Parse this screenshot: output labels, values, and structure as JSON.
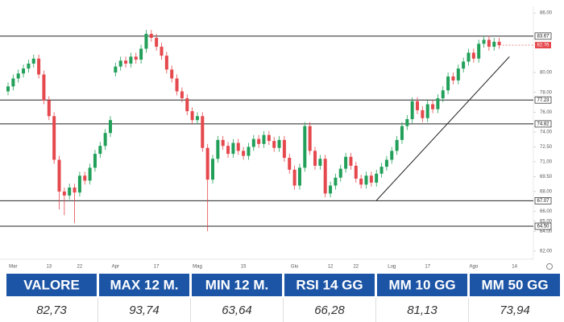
{
  "chart_data": {
    "type": "candlestick",
    "categories": [
      null,
      "Mar",
      null,
      null,
      null,
      null,
      null,
      null,
      "13",
      null,
      null,
      null,
      null,
      null,
      "22",
      null,
      null,
      null,
      null,
      null,
      null,
      "Apr",
      null,
      null,
      null,
      null,
      null,
      null,
      null,
      "17",
      null,
      null,
      null,
      null,
      null,
      null,
      null,
      "Mag",
      null,
      null,
      null,
      null,
      null,
      null,
      null,
      null,
      "15",
      null,
      null,
      null,
      null,
      null,
      null,
      null,
      null,
      null,
      "Giu",
      null,
      null,
      null,
      null,
      null,
      null,
      "12",
      null,
      null,
      null,
      null,
      "22",
      null,
      null,
      null,
      null,
      null,
      null,
      "Lug",
      null,
      null,
      null,
      null,
      null,
      null,
      "17",
      null,
      null,
      null,
      null,
      null,
      null,
      null,
      null,
      "Ago",
      null,
      null,
      null,
      null,
      null,
      null,
      null,
      "14"
    ],
    "open": [
      78.1,
      78.6,
      79.4,
      79.9,
      80.4,
      80.9,
      81.4,
      79.8,
      77.2,
      75.6,
      71.2,
      68.0,
      67.6,
      68.4,
      67.9,
      69.6,
      69.1,
      70.4,
      71.8,
      72.6,
      73.9,
      80.0,
      80.6,
      81.2,
      80.9,
      81.6,
      81.3,
      82.4,
      83.9,
      83.5,
      82.6,
      81.7,
      80.3,
      79.4,
      78.1,
      77.4,
      76.1,
      75.2,
      75.6,
      72.4,
      69.2,
      71.3,
      73.2,
      72.6,
      71.8,
      72.9,
      72.1,
      71.6,
      72.5,
      73.3,
      72.8,
      73.7,
      73.1,
      72.4,
      73.2,
      71.4,
      70.2,
      68.6,
      70.4,
      74.6,
      72.1,
      70.6,
      71.3,
      67.8,
      68.6,
      69.4,
      70.3,
      71.5,
      70.6,
      69.3,
      68.7,
      69.6,
      68.9,
      69.8,
      70.5,
      71.2,
      72.1,
      73.2,
      74.6,
      75.3,
      77.1,
      76.2,
      75.4,
      76.8,
      76.3,
      77.4,
      78.2,
      79.6,
      79.2,
      80.4,
      81.1,
      82.0,
      81.4,
      82.9,
      83.3,
      82.6,
      83.1,
      null,
      null,
      null
    ],
    "high": [
      79.0,
      79.8,
      80.3,
      80.8,
      81.3,
      81.8,
      81.8,
      80.2,
      77.6,
      76.0,
      71.6,
      68.4,
      68.8,
      68.8,
      70.0,
      70.0,
      70.8,
      72.2,
      73.0,
      74.3,
      75.6,
      81.0,
      81.6,
      81.6,
      82.0,
      82.0,
      82.8,
      84.3,
      84.3,
      83.9,
      83.0,
      82.1,
      80.7,
      79.8,
      78.5,
      77.8,
      76.5,
      76.0,
      76.0,
      72.8,
      71.7,
      73.6,
      73.6,
      73.0,
      73.3,
      73.3,
      72.5,
      72.9,
      73.7,
      73.7,
      74.1,
      74.1,
      73.5,
      73.6,
      73.6,
      71.8,
      70.6,
      70.8,
      75.0,
      75.0,
      72.5,
      71.7,
      71.7,
      69.0,
      69.8,
      70.7,
      71.9,
      71.9,
      71.0,
      69.7,
      70.0,
      70.0,
      70.2,
      70.9,
      71.6,
      72.5,
      73.6,
      75.0,
      75.7,
      77.5,
      77.5,
      76.6,
      77.2,
      77.2,
      77.8,
      78.6,
      80.0,
      80.0,
      80.8,
      81.5,
      82.4,
      82.4,
      83.3,
      83.7,
      83.7,
      83.5,
      83.5,
      null,
      null,
      null
    ],
    "low": [
      77.7,
      78.2,
      79.0,
      79.5,
      80.0,
      80.5,
      79.4,
      76.8,
      75.2,
      70.8,
      66.2,
      65.6,
      67.2,
      64.8,
      67.5,
      68.7,
      68.7,
      70.0,
      71.4,
      72.2,
      73.5,
      79.6,
      80.2,
      80.5,
      80.5,
      80.9,
      80.9,
      82.0,
      83.1,
      82.2,
      81.3,
      79.9,
      79.0,
      77.7,
      77.0,
      75.7,
      74.8,
      74.8,
      72.0,
      64.0,
      68.8,
      70.9,
      72.2,
      71.4,
      71.4,
      71.7,
      71.2,
      71.2,
      72.1,
      72.4,
      72.4,
      72.7,
      72.0,
      72.0,
      71.0,
      69.8,
      68.2,
      68.2,
      70.0,
      71.7,
      70.2,
      70.2,
      67.4,
      67.4,
      68.2,
      69.0,
      69.9,
      70.2,
      68.9,
      68.3,
      68.3,
      68.5,
      68.5,
      69.4,
      70.1,
      70.8,
      71.7,
      72.8,
      74.2,
      74.9,
      75.8,
      75.0,
      75.0,
      75.9,
      75.9,
      77.0,
      77.8,
      78.8,
      78.8,
      80.0,
      80.7,
      81.0,
      81.0,
      82.5,
      82.2,
      82.2,
      82.4,
      null,
      null,
      null
    ],
    "close": [
      78.6,
      79.4,
      79.9,
      80.4,
      80.9,
      81.4,
      79.8,
      77.2,
      75.6,
      71.2,
      68.0,
      67.6,
      68.4,
      67.9,
      69.6,
      69.1,
      70.4,
      71.8,
      72.6,
      73.9,
      75.2,
      80.6,
      81.2,
      80.9,
      81.6,
      81.3,
      82.4,
      83.9,
      83.5,
      82.6,
      81.7,
      80.3,
      79.4,
      78.1,
      77.4,
      76.1,
      75.2,
      75.6,
      72.4,
      69.2,
      71.3,
      73.2,
      72.6,
      71.8,
      72.9,
      72.1,
      71.6,
      72.5,
      73.3,
      72.8,
      73.7,
      73.1,
      72.4,
      73.2,
      71.4,
      70.2,
      68.6,
      70.4,
      74.6,
      72.1,
      70.6,
      71.3,
      67.8,
      68.6,
      69.4,
      70.3,
      71.5,
      70.6,
      69.3,
      68.7,
      69.6,
      68.9,
      69.8,
      70.5,
      71.2,
      72.1,
      73.2,
      74.6,
      75.3,
      77.1,
      76.2,
      75.4,
      76.8,
      76.3,
      77.4,
      78.2,
      79.6,
      79.2,
      80.4,
      81.1,
      82.0,
      81.4,
      82.9,
      83.3,
      82.6,
      83.1,
      82.76,
      null,
      null,
      null
    ],
    "up_color": "#22a05a",
    "down_color": "#e5484d",
    "ylim": [
      61.5,
      86.5
    ],
    "yticks": [
      {
        "value": 62,
        "label": "62.00"
      },
      {
        "value": 64,
        "label": "64.00"
      },
      {
        "value": 65,
        "label": "65.00"
      },
      {
        "value": 66,
        "label": "66.00"
      },
      {
        "value": 68,
        "label": "68.00"
      },
      {
        "value": 69.5,
        "label": "69.50"
      },
      {
        "value": 71,
        "label": "71.00"
      },
      {
        "value": 72.5,
        "label": "72.50"
      },
      {
        "value": 74,
        "label": "74.00"
      },
      {
        "value": 76,
        "label": "76.00"
      },
      {
        "value": 78,
        "label": "78.00"
      },
      {
        "value": 80,
        "label": "80.00"
      },
      {
        "value": 86,
        "label": "86.00"
      }
    ],
    "levels": [
      {
        "value": 83.67,
        "label": "83.67"
      },
      {
        "value": 77.23,
        "label": "77.23"
      },
      {
        "value": 74.82,
        "label": "74.82"
      },
      {
        "value": 67.07,
        "label": "67.07"
      },
      {
        "value": 64.5,
        "label": "64.50"
      }
    ],
    "last_price": {
      "value": 82.76,
      "label": "82.76",
      "color": "#e5484d"
    },
    "trendline": {
      "x": [
        72,
        98
      ],
      "y": [
        67.1,
        81.6
      ]
    },
    "grid": false
  },
  "table": {
    "headers": [
      "VALORE",
      "MAX 12 M.",
      "MIN 12 M.",
      "RSI 14 GG",
      "MM 10 GG",
      "MM 50 GG"
    ],
    "values": [
      "82,73",
      "93,74",
      "63,64",
      "66,28",
      "81,13",
      "73,94"
    ],
    "header_color": "#1d55a6"
  }
}
